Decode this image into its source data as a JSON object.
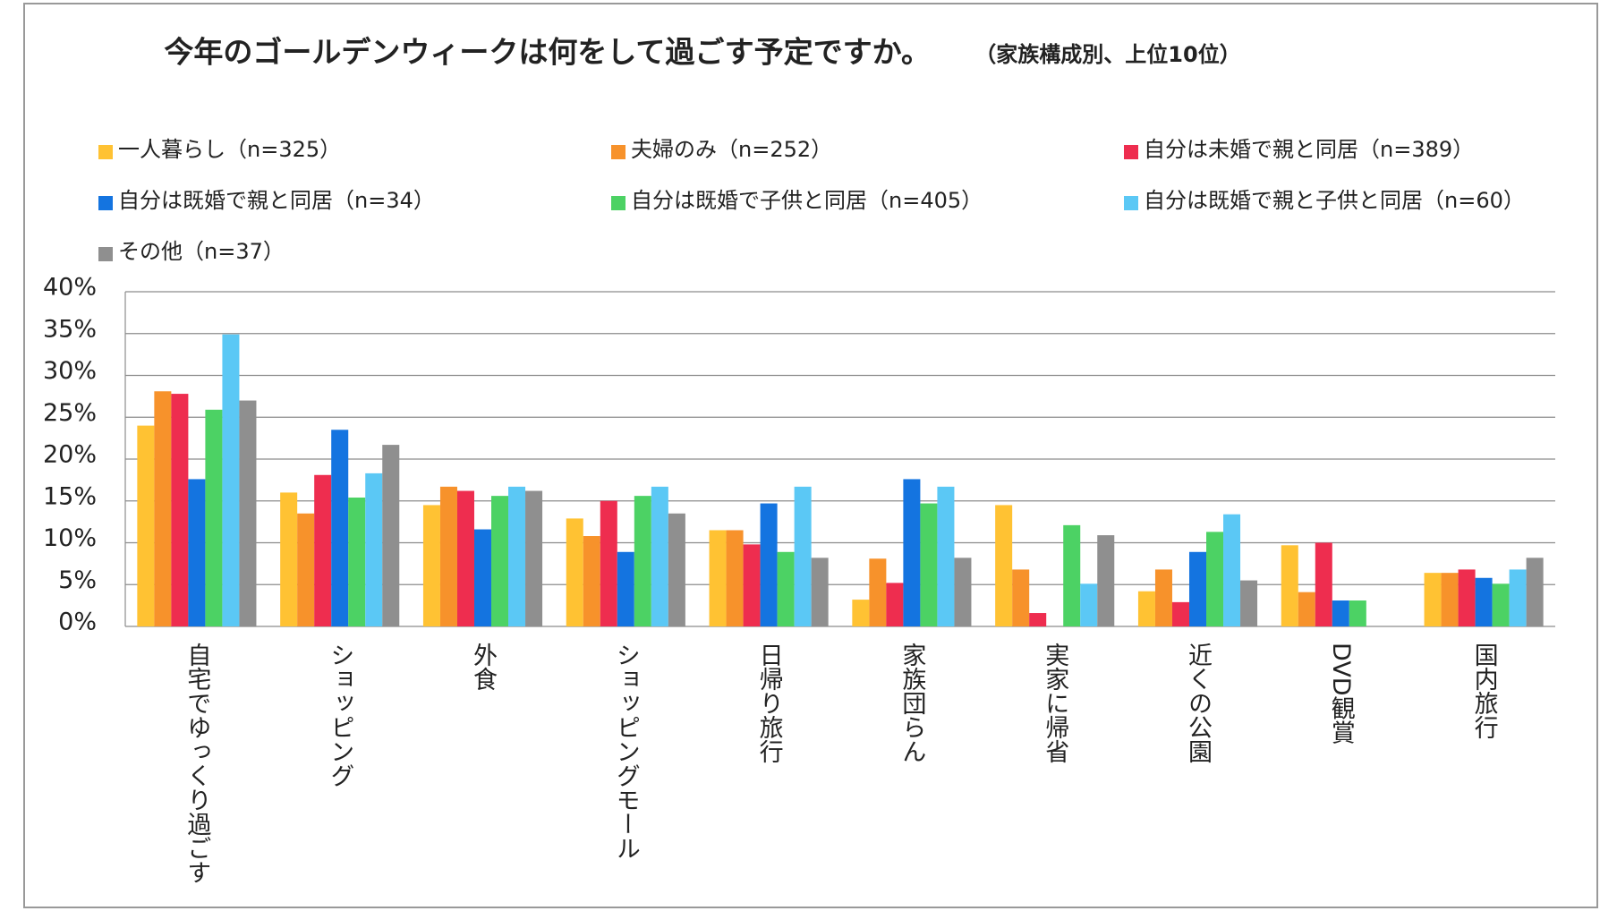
{
  "chart_data": {
    "type": "bar",
    "title": "今年のゴールデンウィークは何をして過ごす予定ですか。",
    "subtitle": "（家族構成別、上位10位）",
    "categories": [
      "自宅でゆっくり過ごす",
      "ショッピング",
      "外食",
      "ショッピングモール",
      "日帰り旅行",
      "家族団らん",
      "実家に帰省",
      "近くの公園",
      "DVD観賞",
      "国内旅行"
    ],
    "series": [
      {
        "name": "一人暮らし（n=325）",
        "color": "#FFC233",
        "values": [
          24,
          16,
          14.5,
          12.9,
          11.5,
          3.2,
          14.5,
          4.2,
          9.7,
          6.4
        ]
      },
      {
        "name": "夫婦のみ（n=252）",
        "color": "#F7922B",
        "values": [
          28.1,
          13.5,
          16.7,
          10.8,
          11.5,
          8.1,
          6.8,
          6.8,
          4.1,
          6.4
        ]
      },
      {
        "name": "自分は未婚で親と同居（n=389）",
        "color": "#EE2D4F",
        "values": [
          27.8,
          18.1,
          16.2,
          15,
          9.8,
          5.2,
          1.6,
          2.9,
          10,
          6.8
        ]
      },
      {
        "name": "自分は既婚で親と同居（n=34）",
        "color": "#1474E0",
        "values": [
          17.6,
          23.5,
          11.6,
          8.9,
          14.7,
          17.6,
          0,
          8.9,
          3.1,
          5.8
        ]
      },
      {
        "name": "自分は既婚で子供と同居（n=405）",
        "color": "#4CD264",
        "values": [
          25.9,
          15.4,
          15.6,
          15.6,
          8.9,
          14.7,
          12.1,
          11.3,
          3.1,
          5.1
        ]
      },
      {
        "name": "自分は既婚で親と子供と同居（n=60）",
        "color": "#5BC8F5",
        "values": [
          34.9,
          18.3,
          16.7,
          16.7,
          16.7,
          16.7,
          5.1,
          13.4,
          0,
          6.8
        ]
      },
      {
        "name": "その他（n=37）",
        "color": "#8F8F8F",
        "values": [
          27,
          21.7,
          16.2,
          13.5,
          8.2,
          8.2,
          10.9,
          5.5,
          0,
          8.2
        ]
      }
    ],
    "ylim": [
      0,
      40
    ],
    "yticks": [
      {
        "value": 0,
        "label": "0%"
      },
      {
        "value": 5,
        "label": "5%"
      },
      {
        "value": 10,
        "label": "10%"
      },
      {
        "value": 15,
        "label": "15%"
      },
      {
        "value": 20,
        "label": "20%"
      },
      {
        "value": 25,
        "label": "25%"
      },
      {
        "value": 30,
        "label": "30%"
      },
      {
        "value": 35,
        "label": "35%"
      },
      {
        "value": 40,
        "label": "40%"
      }
    ],
    "grid": true
  }
}
